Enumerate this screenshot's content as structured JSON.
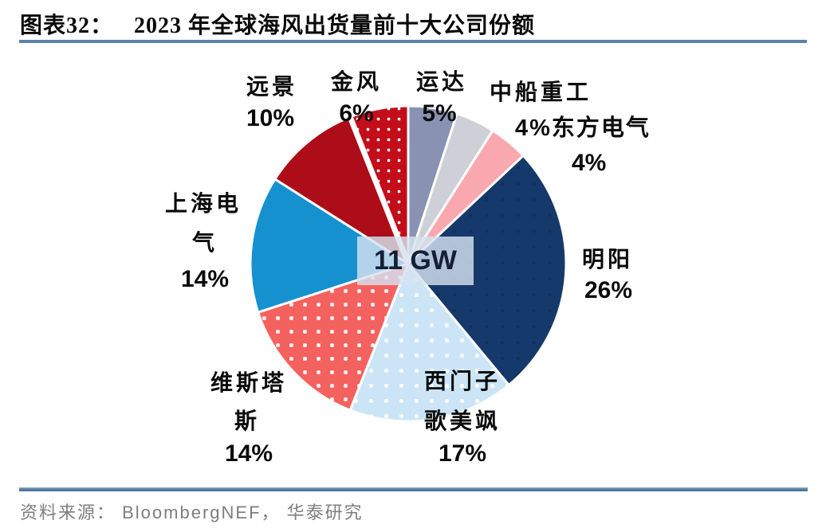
{
  "header": {
    "figure_label": "图表32：",
    "figure_title": "2023 年全球海风出货量前十大公司份额"
  },
  "chart_data": {
    "type": "pie",
    "title": "2023 年全球海风出货量前十大公司份额",
    "center_label": "11 GW",
    "total_shipments": "11 GW",
    "unit": "percent",
    "start_angle_deg": 0,
    "direction": "clockwise",
    "legend_position": "around-pie",
    "slices": [
      {
        "name": "运达",
        "value": 5,
        "color": "#8992b2",
        "pattern": null
      },
      {
        "name": "中船重工",
        "value": 4,
        "color": "#ced0d7",
        "pattern": null
      },
      {
        "name": "东方电气",
        "value": 4,
        "color": "#f9a8b0",
        "pattern": null
      },
      {
        "name": "明阳",
        "value": 26,
        "color": "#16396b",
        "pattern": {
          "dot_color": "#10305c",
          "tile": 20,
          "dot": 4
        }
      },
      {
        "name": "西门子歌美飒",
        "value": 17,
        "color": "#cbe5f6",
        "pattern": {
          "dot_color": "#ffffff",
          "tile": 19,
          "dot": 4.5
        }
      },
      {
        "name": "维斯塔斯",
        "value": 14,
        "color": "#f4625f",
        "pattern": {
          "dot_color": "#ffffff",
          "tile": 17,
          "dot": 4.5
        }
      },
      {
        "name": "上海电气",
        "value": 14,
        "color": "#1691cf",
        "pattern": null
      },
      {
        "name": "远景",
        "value": 10,
        "color": "#ad0d19",
        "pattern": null
      },
      {
        "name": "金风",
        "value": 6,
        "color": "#c30d1b",
        "pattern": {
          "dot_color": "#ffffff",
          "tile": 13,
          "dot": 3.5
        }
      }
    ],
    "separator_after_slice": "远景"
  },
  "labels": {
    "envision": {
      "name": "远景",
      "pct": "10%"
    },
    "goldwind": {
      "name": "金风",
      "pct": "6%"
    },
    "yunda": {
      "name": "运达",
      "pct": "5%"
    },
    "csic": {
      "name": "中船重工",
      "pct_and_dongfang": "4%东方电气",
      "dongfang_pct": "4%"
    },
    "mingyang": {
      "name": "明阳",
      "pct": "26%"
    },
    "shanghai": {
      "line1": "上海电",
      "line2": "气",
      "pct": "14%"
    },
    "vestas": {
      "line1": "维斯塔",
      "line2": "斯",
      "pct": "14%"
    },
    "siemens": {
      "line1": "西门子",
      "line2": "歌美飒",
      "pct": "17%"
    }
  },
  "center_badge": {
    "text": "11 GW"
  },
  "footer": {
    "source": "资料来源： BloombergNEF， 华泰研究"
  },
  "colors": {
    "rule": "#5d81aa",
    "source_text": "#7e7e7e",
    "center_box_fill": "rgba(213,226,239,0.82)",
    "center_text": "#141f36",
    "slice_border": "#ffffff"
  }
}
